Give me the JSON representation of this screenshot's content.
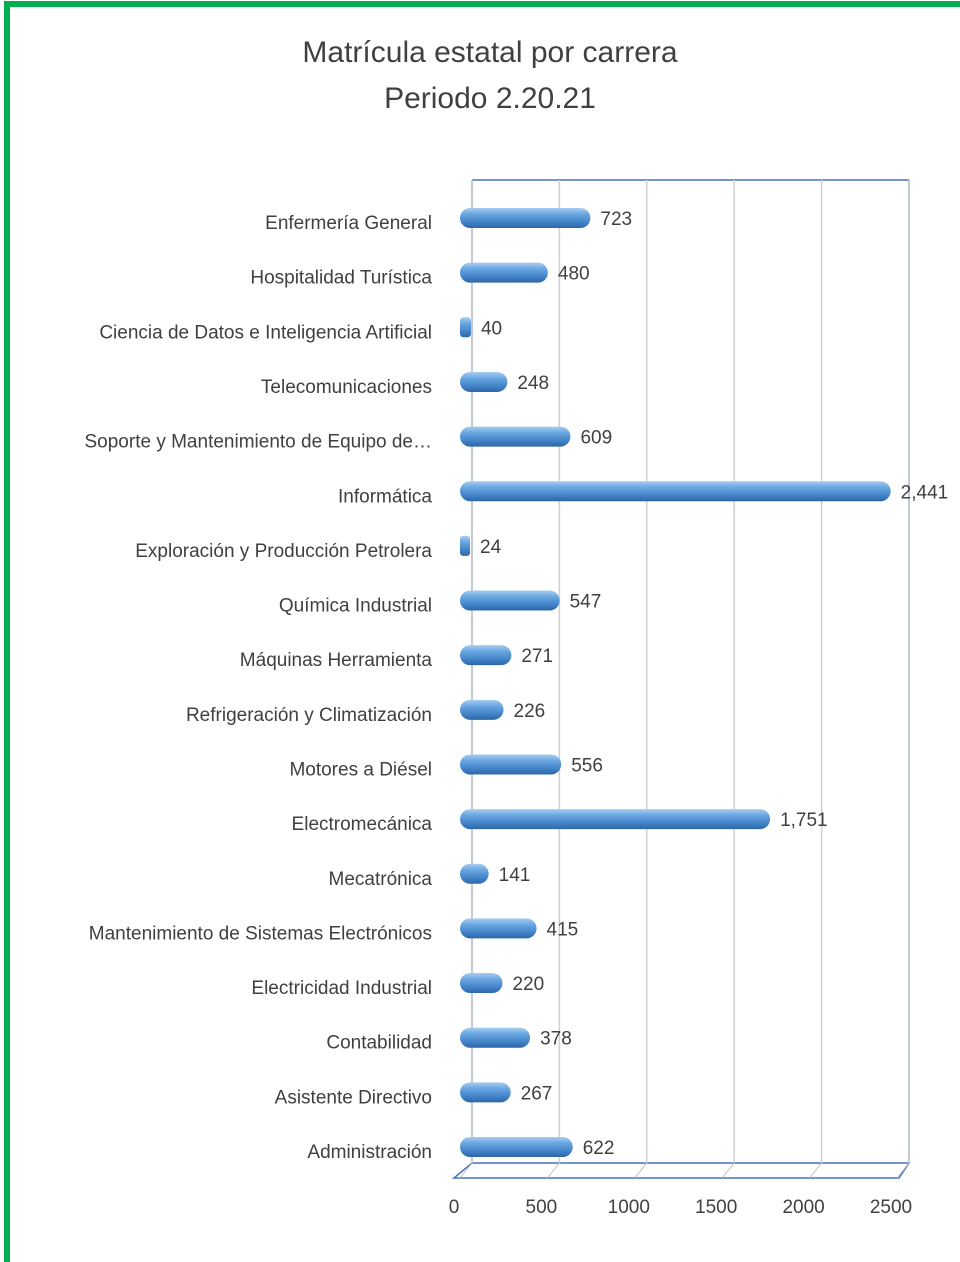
{
  "chart_data": {
    "type": "bar",
    "orientation": "horizontal",
    "title": [
      "Matrícula estatal por carrera",
      "Periodo 2.20.21"
    ],
    "categories": [
      "Enfermería General",
      "Hospitalidad Turística",
      "Ciencia de Datos e Inteligencia Artificial",
      "Telecomunicaciones",
      "Soporte y Mantenimiento de Equipo de…",
      "Informática",
      "Exploración y Producción Petrolera",
      "Química Industrial",
      "Máquinas Herramienta",
      "Refrigeración y Climatización",
      "Motores a Diésel",
      "Electromecánica",
      "Mecatrónica",
      "Mantenimiento de Sistemas Electrónicos",
      "Electricidad Industrial",
      "Contabilidad",
      "Asistente Directivo",
      "Administración"
    ],
    "values": [
      723,
      480,
      40,
      248,
      609,
      2441,
      24,
      547,
      271,
      226,
      556,
      1751,
      141,
      415,
      220,
      378,
      267,
      622
    ],
    "value_labels": [
      "723",
      "480",
      "40",
      "248",
      "609",
      "2,441",
      "24",
      "547",
      "271",
      "226",
      "556",
      "1,751",
      "141",
      "415",
      "220",
      "378",
      "267",
      "622"
    ],
    "color": "#5b9bd5",
    "xlim": [
      0,
      2500
    ],
    "xticks": [
      0,
      500,
      1000,
      1500,
      2000,
      2500
    ],
    "grid": true
  }
}
